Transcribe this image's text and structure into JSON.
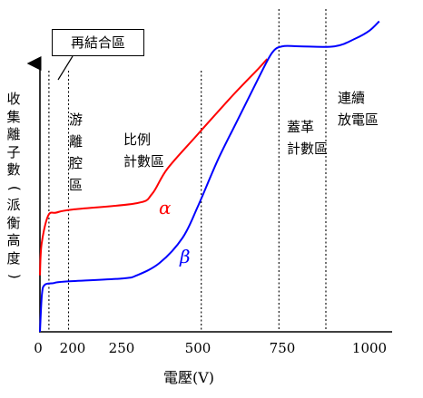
{
  "chart_data": {
    "type": "line",
    "xlabel": "電壓(V)",
    "ylabel": "收集離子數(派衡高度)",
    "xlim": [
      0,
      1050
    ],
    "x_ticks": [
      "0",
      "200",
      "250",
      "500",
      "750",
      "1000"
    ],
    "series": [
      {
        "name": "α",
        "color": "#ff0000",
        "points": [
          [
            0,
            0.18
          ],
          [
            10,
            0.28
          ],
          [
            50,
            0.37
          ],
          [
            100,
            0.38
          ],
          [
            200,
            0.39
          ],
          [
            300,
            0.41
          ],
          [
            350,
            0.44
          ],
          [
            400,
            0.52
          ],
          [
            500,
            0.63
          ],
          [
            600,
            0.75
          ],
          [
            680,
            0.84
          ],
          [
            705,
            0.87
          ]
        ]
      },
      {
        "name": "β",
        "color": "#0000ff",
        "points": [
          [
            0,
            0.0
          ],
          [
            12,
            0.12
          ],
          [
            30,
            0.15
          ],
          [
            80,
            0.155
          ],
          [
            150,
            0.16
          ],
          [
            250,
            0.17
          ],
          [
            300,
            0.18
          ],
          [
            375,
            0.22
          ],
          [
            450,
            0.3
          ],
          [
            500,
            0.4
          ],
          [
            560,
            0.55
          ],
          [
            620,
            0.68
          ],
          [
            680,
            0.81
          ],
          [
            720,
            0.89
          ],
          [
            750,
            0.91
          ],
          [
            800,
            0.91
          ],
          [
            900,
            0.91
          ],
          [
            960,
            0.935
          ],
          [
            1000,
            0.96
          ],
          [
            1030,
            0.99
          ]
        ]
      }
    ],
    "dividers": [
      55,
      175,
      510,
      740,
      875
    ],
    "regions": [
      {
        "label": [
          "游",
          "離",
          "腔",
          "區"
        ]
      },
      {
        "label": [
          "比例",
          "計數區"
        ]
      },
      {
        "label": [
          "蓋革",
          "計數區"
        ]
      },
      {
        "label": [
          "連續",
          "放電區"
        ]
      }
    ],
    "callout": "再結合區"
  }
}
